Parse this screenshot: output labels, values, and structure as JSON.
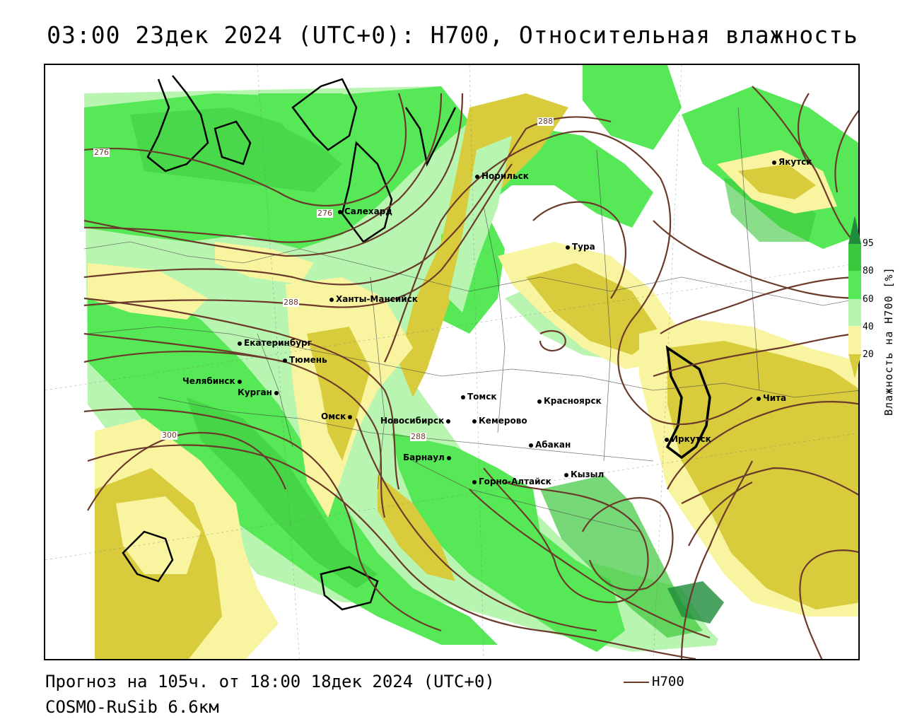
{
  "title": "03:00 23дек 2024 (UTC+0): H700, Относительная влажность",
  "footer": {
    "forecast": "Прогноз на 105ч. от 18:00 18дек 2024 (UTC+0)",
    "model": "COSMO-RuSib 6.6км",
    "legend_label": "H700"
  },
  "colorbar": {
    "title": "Влажность на H700 [%]",
    "ticks": [
      "95",
      "80",
      "60",
      "40",
      "20"
    ],
    "colors": {
      "above_95": "#1e8c3a",
      "80_95": "#3cc83c",
      "60_80": "#56e856",
      "50_60": "#b8f5b0",
      "40_50": "#ffffff",
      "20_40": "#f8f4a0",
      "below_20": "#d8cc3c"
    }
  },
  "contour_color": "#6b3a2a",
  "contour_labels": [
    "276",
    "276",
    "288",
    "288",
    "288",
    "300"
  ],
  "cities": [
    "Салехард",
    "Норильск",
    "Якутск",
    "Тура",
    "Ханты-Мансийск",
    "Екатеринбург",
    "Тюмень",
    "Челябинск",
    "Курган",
    "Омск",
    "Новосибирск",
    "Томск",
    "Кемерово",
    "Красноярск",
    "Барнаул",
    "Абакан",
    "Горно-Алтайск",
    "Кызыл",
    "Иркутск",
    "Чита"
  ]
}
